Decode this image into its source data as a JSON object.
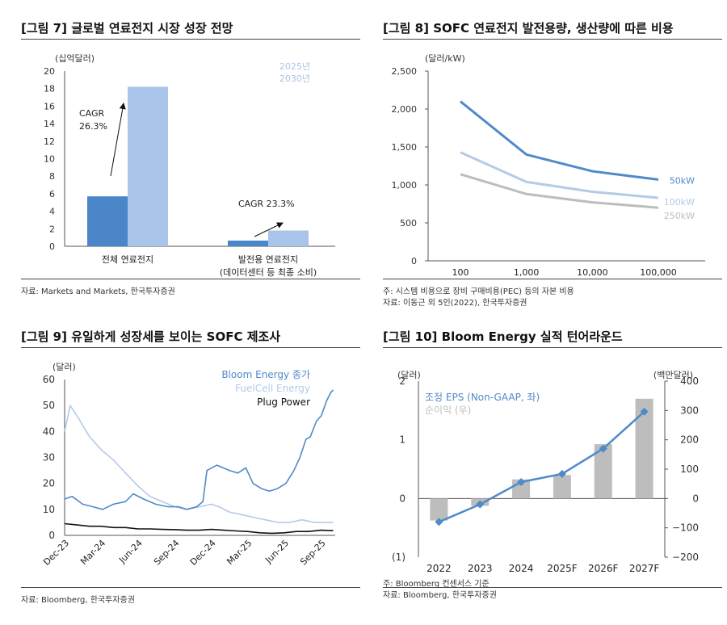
{
  "panels": {
    "p1": {
      "title": "[그림 7] 글로벌 연료전지 시장 성장 전망",
      "source": "자료: Markets and Markets, 한국투자증권"
    },
    "p2": {
      "title": "[그림 8] SOFC 연료전지 발전용량, 생산량에 따른 비용",
      "note": "주: 시스템 비용으로 장비 구매비용(PEC) 등의 자본 비용",
      "source": "자료: 이동근 외 5인(2022), 한국투자증권"
    },
    "p3": {
      "title": "[그림 9] 유일하게 성장세를 보이는 SOFC 제조사",
      "source": "자료: Bloomberg, 한국투자증권"
    },
    "p4": {
      "title": "[그림 10] Bloom Energy 실적 턴어라운드",
      "note": "주: Bloomberg 컨센서스 기준",
      "source": "자료: Bloomberg, 한국투자증권"
    }
  },
  "colors": {
    "dark_blue": "#4a86c8",
    "light_blue": "#a8c4e8",
    "mid_blue": "#4f8ac9",
    "pale_blue": "#b3cbe8",
    "gray": "#bdbdbd",
    "black": "#111111",
    "axis": "#555555"
  },
  "chart_data": [
    {
      "id": "fig7",
      "type": "bar",
      "unit_label": "(십억달러)",
      "categories": [
        "전체 연료전지",
        "발전용 연료전지"
      ],
      "category_sublabels": [
        "",
        "(데이터센터 등 최종 소비)"
      ],
      "series": [
        {
          "name": "2025년",
          "values": [
            5.7,
            0.65
          ]
        },
        {
          "name": "2030년",
          "values": [
            18.2,
            1.8
          ]
        }
      ],
      "yticks": [
        "0",
        "2",
        "4",
        "6",
        "8",
        "10",
        "12",
        "14",
        "16",
        "18",
        "20"
      ],
      "ylim": [
        0,
        20
      ],
      "annotations": [
        {
          "text_lines": [
            "CAGR",
            "26.3%"
          ],
          "category": 0
        },
        {
          "text_lines": [
            "CAGR 23.3%"
          ],
          "category": 1
        }
      ],
      "legend": "top-right"
    },
    {
      "id": "fig8",
      "type": "line",
      "unit_label": "(달러/kW)",
      "x": [
        100,
        1000,
        10000,
        100000
      ],
      "xticks": [
        "100",
        "1,000",
        "10,000",
        "100,000"
      ],
      "xscale": "log",
      "yticks": [
        "0",
        "500",
        "1,000",
        "1,500",
        "2,000",
        "2,500"
      ],
      "ylim": [
        0,
        2500
      ],
      "series": [
        {
          "name": "50kW",
          "values": [
            2100,
            1400,
            1180,
            1070
          ]
        },
        {
          "name": "100kW",
          "values": [
            1430,
            1040,
            910,
            830
          ]
        },
        {
          "name": "250kW",
          "values": [
            1140,
            880,
            770,
            700
          ]
        }
      ],
      "legend": "end-of-line"
    },
    {
      "id": "fig9",
      "type": "line",
      "unit_label": "(달러)",
      "xticks": [
        "Dec-23",
        "Mar-24",
        "Jun-24",
        "Sep-24",
        "Dec-24",
        "Mar-25",
        "Jun-25",
        "Sep-25"
      ],
      "xlim": [
        "2023-12-01",
        "2025-10-06"
      ],
      "yticks": [
        "0",
        "10",
        "20",
        "30",
        "40",
        "50",
        "60"
      ],
      "ylim": [
        0,
        60
      ],
      "series": [
        {
          "name": "Bloom Energy 종가",
          "dates": [
            "2023-12-01",
            "2023-12-20",
            "2024-01-15",
            "2024-02-10",
            "2024-03-05",
            "2024-04-01",
            "2024-05-01",
            "2024-05-20",
            "2024-06-15",
            "2024-07-15",
            "2024-08-15",
            "2024-09-10",
            "2024-10-01",
            "2024-10-25",
            "2024-11-10",
            "2024-11-20",
            "2024-12-15",
            "2025-01-15",
            "2025-02-05",
            "2025-02-25",
            "2025-03-15",
            "2025-04-05",
            "2025-04-25",
            "2025-05-15",
            "2025-06-05",
            "2025-06-25",
            "2025-07-10",
            "2025-07-25",
            "2025-08-05",
            "2025-08-20",
            "2025-09-01",
            "2025-09-15",
            "2025-09-25",
            "2025-10-01"
          ],
          "values": [
            14,
            15,
            12,
            11,
            10,
            12,
            13,
            16,
            14,
            12,
            11,
            11,
            10,
            11,
            13,
            25,
            27,
            25,
            24,
            26,
            20,
            18,
            17,
            18,
            20,
            25,
            30,
            37,
            38,
            44,
            46,
            52,
            55,
            56
          ]
        },
        {
          "name": "FuelCell Energy",
          "dates": [
            "2023-12-01",
            "2023-12-15",
            "2024-01-05",
            "2024-02-01",
            "2024-03-01",
            "2024-04-01",
            "2024-05-01",
            "2024-06-01",
            "2024-07-01",
            "2024-08-01",
            "2024-09-01",
            "2024-10-01",
            "2024-11-01",
            "2024-12-01",
            "2024-12-20",
            "2025-01-15",
            "2025-02-15",
            "2025-03-15",
            "2025-04-15",
            "2025-05-15",
            "2025-06-15",
            "2025-07-15",
            "2025-08-15",
            "2025-09-15",
            "2025-10-01"
          ],
          "values": [
            40,
            50,
            45,
            38,
            33,
            29,
            24,
            19,
            15,
            13,
            11,
            10,
            11,
            12,
            11,
            9,
            8,
            7,
            6,
            5,
            5,
            6,
            5,
            5,
            5
          ]
        },
        {
          "name": "Plug Power",
          "dates": [
            "2023-12-01",
            "2024-01-01",
            "2024-02-01",
            "2024-03-01",
            "2024-04-01",
            "2024-05-01",
            "2024-06-01",
            "2024-07-01",
            "2024-08-01",
            "2024-09-01",
            "2024-10-01",
            "2024-11-01",
            "2024-12-01",
            "2025-01-01",
            "2025-02-01",
            "2025-03-01",
            "2025-04-01",
            "2025-05-01",
            "2025-06-01",
            "2025-07-01",
            "2025-08-01",
            "2025-09-01",
            "2025-10-01"
          ],
          "values": [
            4.5,
            4,
            3.5,
            3.5,
            3,
            3,
            2.5,
            2.5,
            2.3,
            2.2,
            2,
            2,
            2.3,
            2,
            1.7,
            1.5,
            1,
            0.8,
            1,
            1.5,
            1.5,
            2,
            1.8
          ]
        }
      ],
      "legend": "top-right"
    },
    {
      "id": "fig10",
      "type": "bar",
      "unit_label_left": "(달러)",
      "unit_label_right": "(백만달러)",
      "categories": [
        "2022",
        "2023",
        "2024",
        "2025F",
        "2026F",
        "2027F"
      ],
      "series": [
        {
          "name": "조정 EPS (Non-GAAP, 좌)",
          "type": "line",
          "axis": "left",
          "values": [
            -0.4,
            -0.1,
            0.28,
            0.42,
            0.85,
            1.48
          ]
        },
        {
          "name": "순이익 (우)",
          "type": "bar",
          "axis": "right",
          "values": [
            -75,
            -25,
            65,
            80,
            185,
            340
          ]
        }
      ],
      "yticks_left": [
        "(1)",
        "0",
        "1",
        "2"
      ],
      "ylim_left": [
        -1,
        2
      ],
      "yticks_right": [
        "−200",
        "−100",
        "0",
        "100",
        "200",
        "300",
        "400"
      ],
      "ylim_right": [
        -200,
        400
      ],
      "legend": "top-left"
    }
  ]
}
